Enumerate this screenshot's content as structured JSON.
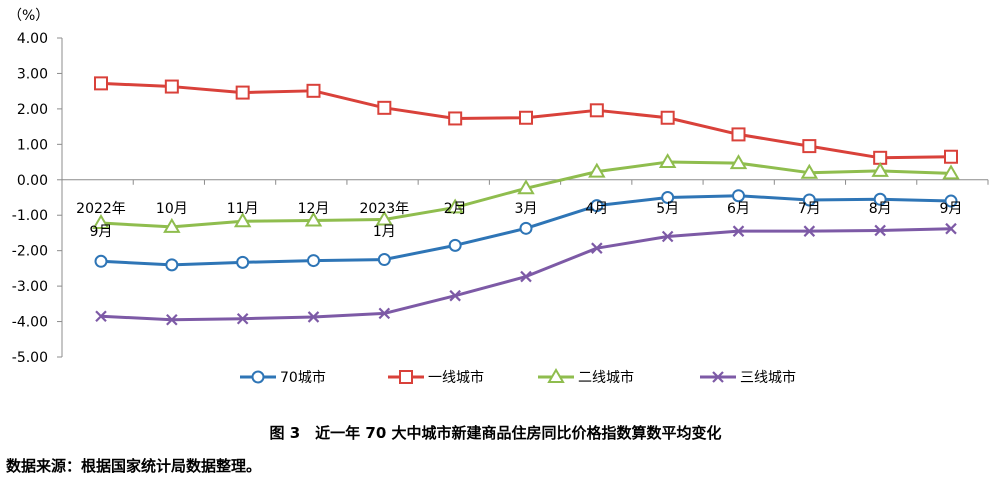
{
  "chart_data": {
    "type": "line",
    "unit_label": "（%）",
    "ylim": [
      -5.0,
      4.0
    ],
    "yticks": [
      "4.00",
      "3.00",
      "2.00",
      "1.00",
      "0.00",
      "-1.00",
      "-2.00",
      "-3.00",
      "-4.00",
      "-5.00"
    ],
    "categories": [
      [
        "2022年",
        "9月"
      ],
      [
        "10月"
      ],
      [
        "11月"
      ],
      [
        "12月"
      ],
      [
        "2023年",
        "1月"
      ],
      [
        "2月"
      ],
      [
        "3月"
      ],
      [
        "4月"
      ],
      [
        "5月"
      ],
      [
        "6月"
      ],
      [
        "7月"
      ],
      [
        "8月"
      ],
      [
        "9月"
      ]
    ],
    "series": [
      {
        "name": "70城市",
        "color": "#2e75b6",
        "marker": "circle",
        "values": [
          -2.3,
          -2.4,
          -2.33,
          -2.28,
          -2.25,
          -1.85,
          -1.37,
          -0.73,
          -0.5,
          -0.45,
          -0.57,
          -0.55,
          -0.6
        ]
      },
      {
        "name": "一线城市",
        "color": "#d9413a",
        "marker": "square",
        "values": [
          2.72,
          2.63,
          2.46,
          2.51,
          2.03,
          1.73,
          1.75,
          1.96,
          1.75,
          1.28,
          0.95,
          0.62,
          0.65
        ]
      },
      {
        "name": "二线城市",
        "color": "#8fbd4e",
        "marker": "triangle",
        "values": [
          -1.22,
          -1.33,
          -1.17,
          -1.15,
          -1.12,
          -0.78,
          -0.24,
          0.23,
          0.5,
          0.47,
          0.2,
          0.25,
          0.18
        ]
      },
      {
        "name": "三线城市",
        "color": "#7d5aa6",
        "marker": "x",
        "values": [
          -3.85,
          -3.95,
          -3.92,
          -3.87,
          -3.77,
          -3.27,
          -2.73,
          -1.93,
          -1.6,
          -1.45,
          -1.45,
          -1.43,
          -1.38
        ]
      }
    ],
    "legend_position": "bottom"
  },
  "caption": "图 3　近一年 70 大中城市新建商品住房同比价格指数算数平均变化",
  "source": "数据来源：根据国家统计局数据整理。"
}
